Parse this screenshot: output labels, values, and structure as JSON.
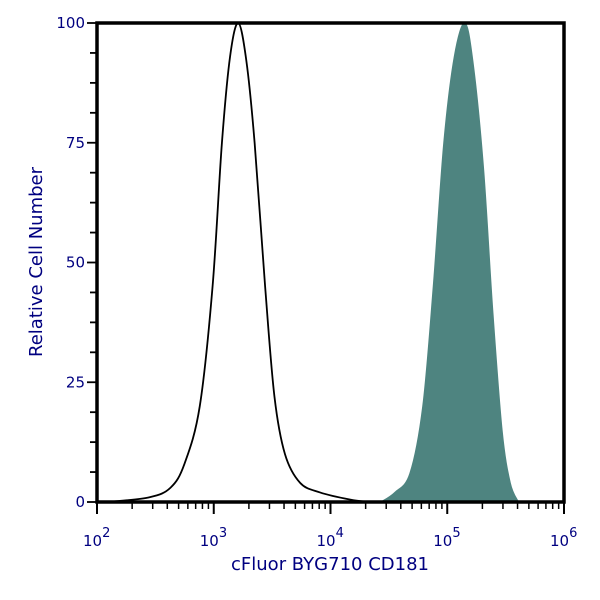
{
  "chart_data": {
    "type": "area",
    "title": "",
    "xlabel": "cFluor BYG710 CD181",
    "ylabel": "Relative Cell Number",
    "xscale": "log",
    "xlim": [
      100,
      1000000
    ],
    "ylim": [
      0,
      100
    ],
    "x_ticks": [
      {
        "base": "10",
        "exp": "2"
      },
      {
        "base": "10",
        "exp": "3"
      },
      {
        "base": "10",
        "exp": "4"
      },
      {
        "base": "10",
        "exp": "5"
      },
      {
        "base": "10",
        "exp": "6"
      }
    ],
    "y_ticks": [
      "0",
      "25",
      "50",
      "75",
      "100"
    ],
    "grid": false,
    "series": [
      {
        "style": "outline",
        "color": "#000000",
        "x": [
          126,
          282,
          427,
          562,
          759,
          977,
          1175,
          1380,
          1622,
          1905,
          2239,
          2754,
          3311,
          4074,
          5495,
          8128,
          14791,
          21878
        ],
        "y": [
          0,
          1,
          3,
          8,
          20,
          45,
          75,
          93,
          100,
          92,
          75,
          45,
          22,
          10,
          4,
          2,
          0.5,
          0
        ]
      },
      {
        "style": "filled",
        "color": "#4e8480",
        "x": [
          26915,
          35481,
          47863,
          61660,
          75858,
          93325,
          114815,
          141254,
          165959,
          204174,
          245471,
          295121,
          346737,
          407380
        ],
        "y": [
          0,
          2,
          6,
          20,
          45,
          75,
          93,
          100,
          92,
          70,
          40,
          15,
          4,
          0
        ]
      }
    ],
    "colors": {
      "axis_text": "#000080",
      "frame": "#000000"
    }
  }
}
